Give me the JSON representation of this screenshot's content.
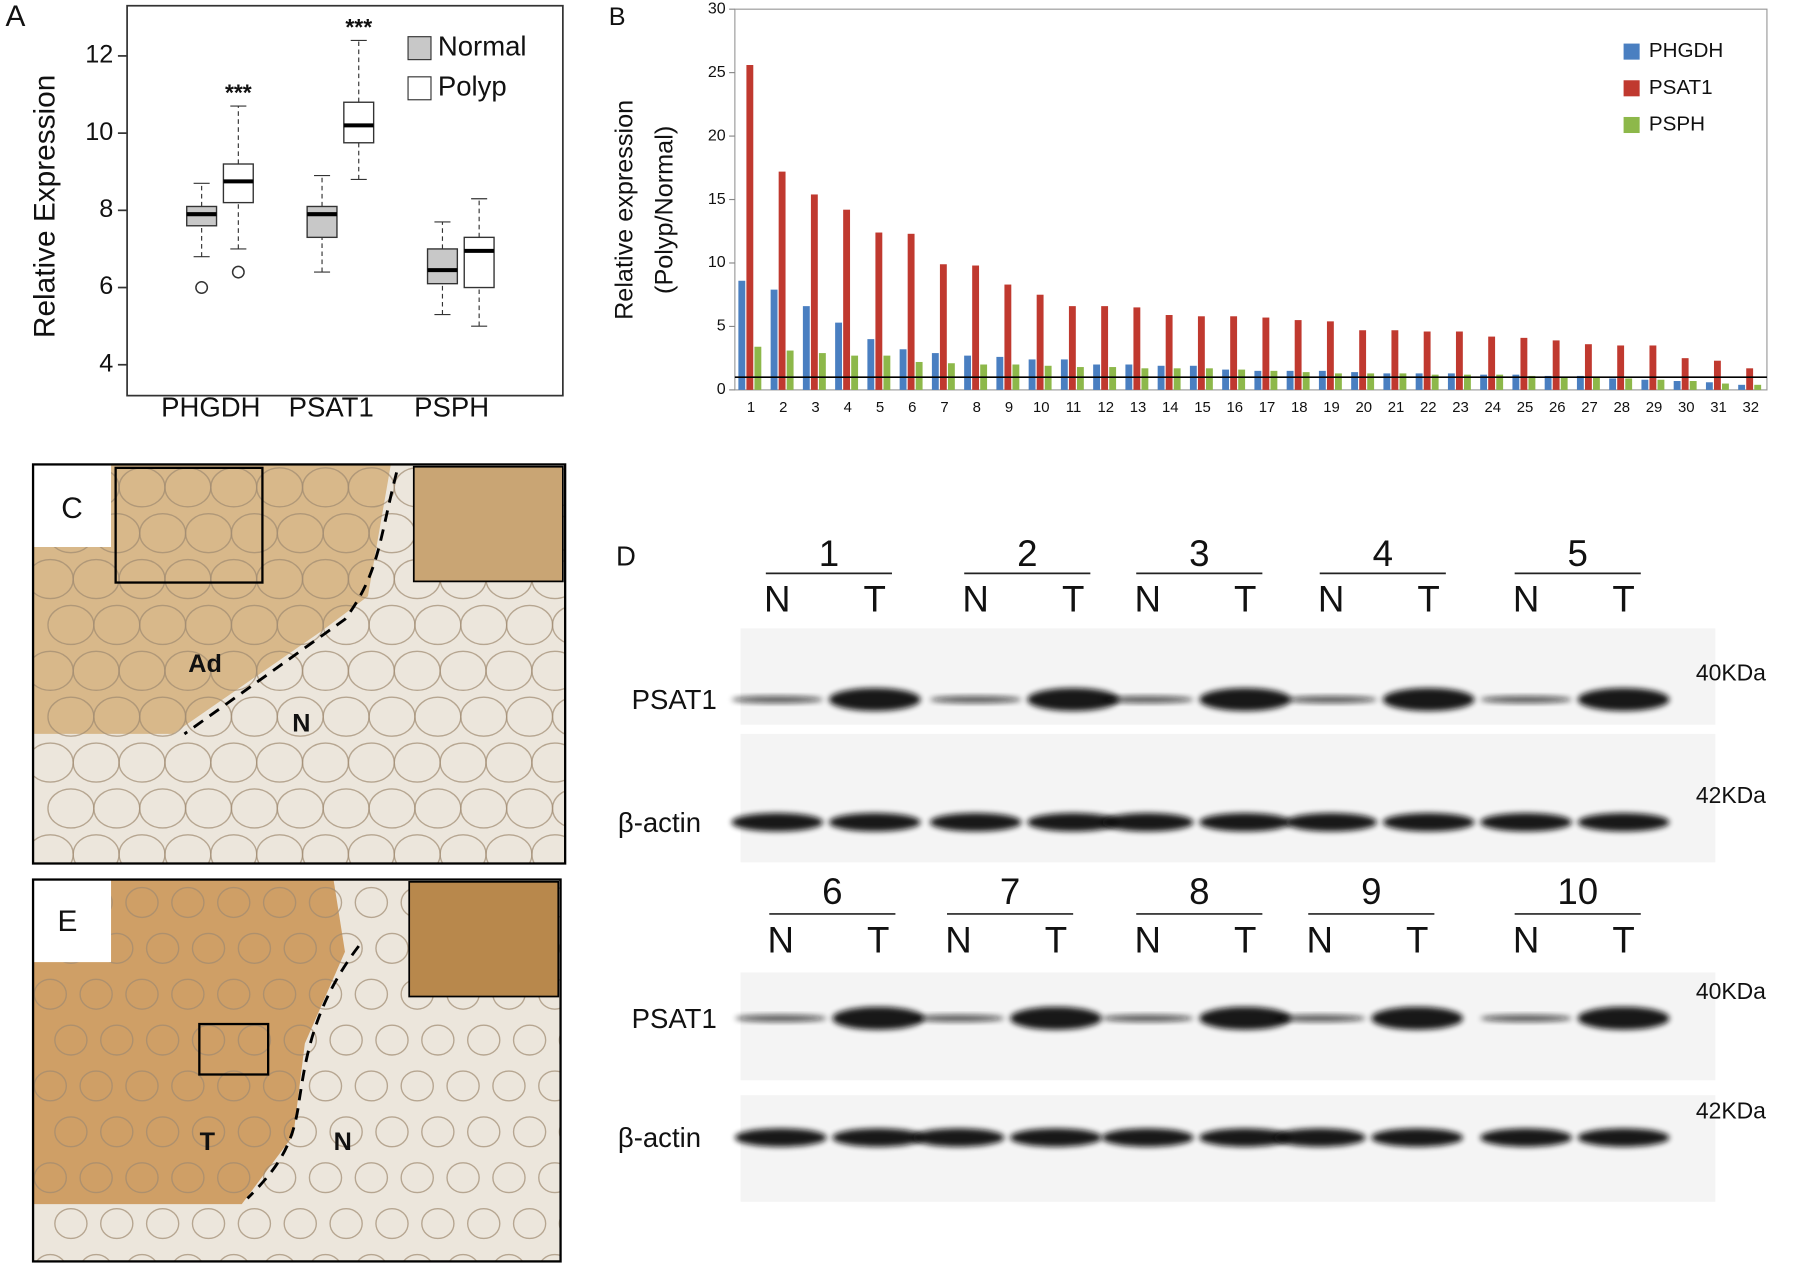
{
  "chart_data": [
    {
      "type": "box",
      "panel": "A",
      "ylabel": "Relative Expression",
      "categories": [
        "PHGDH",
        "PSAT1",
        "PSPH"
      ],
      "significance": [
        "***",
        "***",
        null
      ],
      "series": [
        {
          "name": "Normal",
          "color": "#c8c8c8",
          "boxes": [
            {
              "whislo": 6.8,
              "q1": 7.6,
              "med": 7.9,
              "q3": 8.1,
              "whishi": 8.7,
              "fliers": [
                6.0
              ]
            },
            {
              "whislo": 6.4,
              "q1": 7.3,
              "med": 7.9,
              "q3": 8.1,
              "whishi": 8.9,
              "fliers": []
            },
            {
              "whislo": 5.3,
              "q1": 6.1,
              "med": 6.45,
              "q3": 7.0,
              "whishi": 7.7,
              "fliers": []
            }
          ]
        },
        {
          "name": "Polyp",
          "color": "#ffffff",
          "boxes": [
            {
              "whislo": 7.0,
              "q1": 8.2,
              "med": 8.75,
              "q3": 9.2,
              "whishi": 10.7,
              "fliers": [
                6.4
              ]
            },
            {
              "whislo": 8.8,
              "q1": 9.75,
              "med": 10.2,
              "q3": 10.8,
              "whishi": 12.4,
              "fliers": []
            },
            {
              "whislo": 5.0,
              "q1": 6.0,
              "med": 6.95,
              "q3": 7.3,
              "whishi": 8.3,
              "fliers": []
            }
          ]
        }
      ],
      "ylim": [
        3.2,
        13.3
      ],
      "yticks": [
        4,
        6,
        8,
        10,
        12
      ],
      "legend": "upper right"
    },
    {
      "type": "bar",
      "panel": "B",
      "ylabel": [
        "Relative expression",
        "(Polyp/Normal)"
      ],
      "categories": [
        1,
        2,
        3,
        4,
        5,
        6,
        7,
        8,
        9,
        10,
        11,
        12,
        13,
        14,
        15,
        16,
        17,
        18,
        19,
        20,
        21,
        22,
        23,
        24,
        25,
        26,
        27,
        28,
        29,
        30,
        31,
        32
      ],
      "series": [
        {
          "name": "PHGDH",
          "color": "#4a7fc1",
          "values": [
            8.6,
            7.9,
            6.6,
            5.3,
            4.0,
            3.2,
            2.9,
            2.7,
            2.6,
            2.4,
            2.4,
            2.0,
            2.0,
            1.9,
            1.9,
            1.6,
            1.5,
            1.5,
            1.5,
            1.4,
            1.3,
            1.3,
            1.3,
            1.2,
            1.2,
            1.1,
            1.1,
            0.9,
            0.8,
            0.7,
            0.6,
            0.4
          ]
        },
        {
          "name": "PSAT1",
          "color": "#c0392f",
          "values": [
            25.6,
            17.2,
            15.4,
            14.2,
            12.4,
            12.3,
            9.9,
            9.8,
            8.3,
            7.5,
            6.6,
            6.6,
            6.5,
            5.9,
            5.8,
            5.8,
            5.7,
            5.5,
            5.4,
            4.7,
            4.7,
            4.6,
            4.6,
            4.2,
            4.1,
            3.9,
            3.6,
            3.5,
            3.5,
            2.5,
            2.3,
            1.7
          ]
        },
        {
          "name": "PSPH",
          "color": "#8db84a",
          "values": [
            3.4,
            3.1,
            2.9,
            2.7,
            2.7,
            2.2,
            2.1,
            2.0,
            2.0,
            1.9,
            1.8,
            1.8,
            1.7,
            1.7,
            1.7,
            1.6,
            1.5,
            1.4,
            1.3,
            1.3,
            1.3,
            1.2,
            1.2,
            1.2,
            1.1,
            1.0,
            1.0,
            0.9,
            0.8,
            0.7,
            0.5,
            0.4
          ]
        }
      ],
      "ylim": [
        0,
        30
      ],
      "yticks": [
        0,
        5,
        10,
        15,
        20,
        25,
        30
      ],
      "reference_line": 1,
      "legend": "upper right"
    }
  ],
  "histology": [
    {
      "panel": "C",
      "labels": [
        "Ad",
        "N"
      ]
    },
    {
      "panel": "E",
      "labels": [
        "T",
        "N"
      ]
    }
  ],
  "western_blot": {
    "panel": "D",
    "lanes": [
      "N",
      "T"
    ],
    "rows": [
      {
        "groups": [
          "1",
          "2",
          "3",
          "4",
          "5"
        ],
        "proteins": [
          {
            "name": "PSAT1",
            "size": "40KDa"
          },
          {
            "name": "β-actin",
            "size": "42KDa"
          }
        ]
      },
      {
        "groups": [
          "6",
          "7",
          "8",
          "9",
          "10"
        ],
        "proteins": [
          {
            "name": "PSAT1",
            "size": "40KDa"
          },
          {
            "name": "β-actin",
            "size": "42KDa"
          }
        ]
      }
    ]
  }
}
